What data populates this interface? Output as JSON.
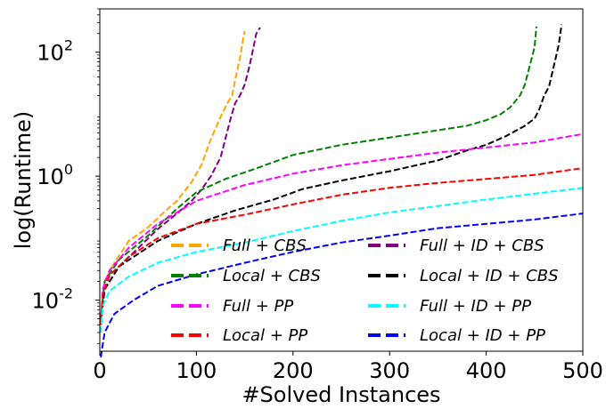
{
  "chart_data": {
    "type": "line",
    "title": "",
    "xlabel": "#Solved Instances",
    "ylabel": "log(Runtime)",
    "xlim": [
      0,
      500
    ],
    "ylim": [
      0.0015,
      500
    ],
    "yscale": "log",
    "xticks": [
      0,
      100,
      200,
      300,
      400,
      500
    ],
    "xtick_labels": [
      "0",
      "100",
      "200",
      "300",
      "400",
      "500"
    ],
    "yticks": [
      0.01,
      1,
      100
    ],
    "ytick_labels": [
      "10^-2",
      "10^0",
      "10^2"
    ],
    "grid": false,
    "legend_position": "lower-right",
    "legend_columns": 2,
    "series": [
      {
        "name": "Full + CBS",
        "color": "#ffa500",
        "line_style": "dashed",
        "points": [
          [
            1,
            0.005
          ],
          [
            5,
            0.02
          ],
          [
            15,
            0.04
          ],
          [
            30,
            0.09
          ],
          [
            50,
            0.15
          ],
          [
            65,
            0.25
          ],
          [
            80,
            0.4
          ],
          [
            95,
            0.8
          ],
          [
            105,
            1.5
          ],
          [
            115,
            4
          ],
          [
            125,
            9
          ],
          [
            132,
            15
          ],
          [
            137,
            20
          ],
          [
            140,
            35
          ],
          [
            145,
            80
          ],
          [
            148,
            150
          ],
          [
            150,
            220
          ]
        ]
      },
      {
        "name": "Full + ID + CBS",
        "color": "#800080",
        "line_style": "dashed",
        "points": [
          [
            1,
            0.004
          ],
          [
            5,
            0.015
          ],
          [
            20,
            0.035
          ],
          [
            40,
            0.07
          ],
          [
            60,
            0.14
          ],
          [
            80,
            0.25
          ],
          [
            95,
            0.4
          ],
          [
            105,
            0.6
          ],
          [
            115,
            1.0
          ],
          [
            125,
            2
          ],
          [
            130,
            4
          ],
          [
            135,
            8
          ],
          [
            140,
            15
          ],
          [
            145,
            20
          ],
          [
            150,
            30
          ],
          [
            155,
            60
          ],
          [
            158,
            100
          ],
          [
            162,
            200
          ],
          [
            166,
            250
          ]
        ]
      },
      {
        "name": "Local + CBS",
        "color": "#008000",
        "line_style": "dashed",
        "points": [
          [
            1,
            0.005
          ],
          [
            5,
            0.02
          ],
          [
            20,
            0.045
          ],
          [
            50,
            0.11
          ],
          [
            80,
            0.3
          ],
          [
            100,
            0.55
          ],
          [
            130,
            0.9
          ],
          [
            160,
            1.3
          ],
          [
            200,
            2.2
          ],
          [
            250,
            3.2
          ],
          [
            300,
            4.2
          ],
          [
            350,
            5.5
          ],
          [
            380,
            6.5
          ],
          [
            400,
            8
          ],
          [
            415,
            10
          ],
          [
            425,
            13
          ],
          [
            435,
            20
          ],
          [
            440,
            30
          ],
          [
            445,
            60
          ],
          [
            450,
            120
          ],
          [
            452,
            260
          ]
        ]
      },
      {
        "name": "Local + ID + CBS",
        "color": "#000000",
        "line_style": "dashed",
        "points": [
          [
            1,
            0.004
          ],
          [
            5,
            0.015
          ],
          [
            20,
            0.035
          ],
          [
            60,
            0.09
          ],
          [
            100,
            0.17
          ],
          [
            140,
            0.28
          ],
          [
            180,
            0.42
          ],
          [
            210,
            0.62
          ],
          [
            250,
            0.85
          ],
          [
            300,
            1.2
          ],
          [
            350,
            1.8
          ],
          [
            380,
            2.6
          ],
          [
            400,
            3.2
          ],
          [
            420,
            4.4
          ],
          [
            440,
            6.5
          ],
          [
            450,
            8.5
          ],
          [
            455,
            12
          ],
          [
            460,
            20
          ],
          [
            465,
            28
          ],
          [
            470,
            60
          ],
          [
            475,
            130
          ],
          [
            478,
            280
          ]
        ]
      },
      {
        "name": "Full + PP",
        "color": "#ff00ff",
        "line_style": "dashed",
        "points": [
          [
            1,
            0.004
          ],
          [
            3,
            0.015
          ],
          [
            10,
            0.03
          ],
          [
            30,
            0.07
          ],
          [
            60,
            0.17
          ],
          [
            100,
            0.4
          ],
          [
            150,
            0.72
          ],
          [
            200,
            1.1
          ],
          [
            250,
            1.5
          ],
          [
            300,
            1.9
          ],
          [
            350,
            2.4
          ],
          [
            400,
            2.9
          ],
          [
            450,
            3.5
          ],
          [
            500,
            4.8
          ]
        ]
      },
      {
        "name": "Local + PP",
        "color": "#ff0000",
        "line_style": "dashed",
        "points": [
          [
            1,
            0.004
          ],
          [
            3,
            0.012
          ],
          [
            10,
            0.025
          ],
          [
            30,
            0.05
          ],
          [
            60,
            0.1
          ],
          [
            100,
            0.17
          ],
          [
            150,
            0.24
          ],
          [
            200,
            0.35
          ],
          [
            250,
            0.5
          ],
          [
            300,
            0.65
          ],
          [
            350,
            0.78
          ],
          [
            400,
            0.9
          ],
          [
            450,
            1.05
          ],
          [
            500,
            1.35
          ]
        ]
      },
      {
        "name": "Full + ID + PP",
        "color": "#00ffff",
        "line_style": "dashed",
        "points": [
          [
            1,
            0.003
          ],
          [
            3,
            0.008
          ],
          [
            10,
            0.014
          ],
          [
            30,
            0.024
          ],
          [
            60,
            0.04
          ],
          [
            100,
            0.06
          ],
          [
            150,
            0.085
          ],
          [
            200,
            0.13
          ],
          [
            250,
            0.19
          ],
          [
            300,
            0.26
          ],
          [
            350,
            0.33
          ],
          [
            400,
            0.42
          ],
          [
            450,
            0.52
          ],
          [
            500,
            0.65
          ]
        ]
      },
      {
        "name": "Local + ID + PP",
        "color": "#0000ff",
        "line_style": "dashed",
        "points": [
          [
            1,
            0.0012
          ],
          [
            5,
            0.003
          ],
          [
            15,
            0.006
          ],
          [
            35,
            0.01
          ],
          [
            60,
            0.017
          ],
          [
            100,
            0.026
          ],
          [
            150,
            0.04
          ],
          [
            200,
            0.06
          ],
          [
            250,
            0.085
          ],
          [
            300,
            0.11
          ],
          [
            350,
            0.145
          ],
          [
            400,
            0.17
          ],
          [
            450,
            0.2
          ],
          [
            500,
            0.25
          ]
        ]
      }
    ],
    "legend_entries": [
      {
        "label": "Full + CBS",
        "color": "#ffa500"
      },
      {
        "label": "Full + ID + CBS",
        "color": "#800080"
      },
      {
        "label": "Local + CBS",
        "color": "#008000"
      },
      {
        "label": "Local + ID + CBS",
        "color": "#000000"
      },
      {
        "label": "Full + PP",
        "color": "#ff00ff"
      },
      {
        "label": "Full + ID + PP",
        "color": "#00ffff"
      },
      {
        "label": "Local + PP",
        "color": "#ff0000"
      },
      {
        "label": "Local + ID + PP",
        "color": "#0000ff"
      }
    ]
  }
}
